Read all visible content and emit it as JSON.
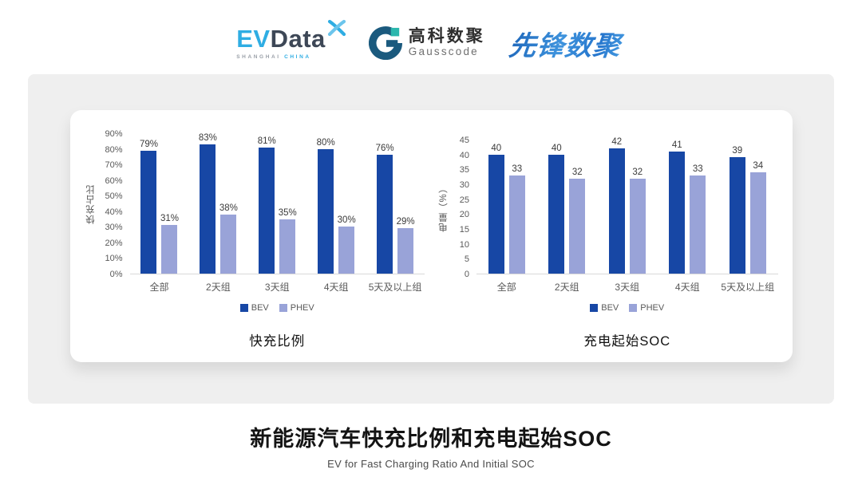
{
  "header": {
    "evdata": {
      "ev": "EV",
      "data": "Data",
      "sub_left": "SHANGHAI",
      "sub_right": "CHINA"
    },
    "gausscode": {
      "cn": "高科数聚",
      "en": "Gausscode"
    },
    "xianfeng": "先锋数聚"
  },
  "colors": {
    "bev": "#1747a5",
    "phev": "#99a3d8",
    "axis_text": "#595959",
    "baseline": "#d9d9d9",
    "evdata_blue": "#2fade3",
    "evdata_dark": "#3d4756",
    "gausscode_dark": "#1b5a7e",
    "gausscode_teal": "#2bb7ad"
  },
  "chart_data": [
    {
      "type": "bar",
      "title": "快充比例",
      "ylabel": "快充占比",
      "categories": [
        "全部",
        "2天组",
        "3天组",
        "4天组",
        "5天及以上组"
      ],
      "series": [
        {
          "name": "BEV",
          "values": [
            79,
            83,
            81,
            80,
            76
          ]
        },
        {
          "name": "PHEV",
          "values": [
            31,
            38,
            35,
            30,
            29
          ]
        }
      ],
      "ylim": [
        0,
        90
      ],
      "yticks": [
        "90%",
        "80%",
        "70%",
        "60%",
        "50%",
        "40%",
        "30%",
        "20%",
        "10%",
        "0%"
      ],
      "value_suffix": "%",
      "legend": [
        "BEV",
        "PHEV"
      ],
      "grid": false,
      "legend_position": "bottom"
    },
    {
      "type": "bar",
      "title": "充电起始SOC",
      "ylabel": "电量（%）",
      "categories": [
        "全部",
        "2天组",
        "3天组",
        "4天组",
        "5天及以上组"
      ],
      "series": [
        {
          "name": "BEV",
          "values": [
            40,
            40,
            42,
            41,
            39
          ]
        },
        {
          "name": "PHEV",
          "values": [
            33,
            32,
            32,
            33,
            34
          ]
        }
      ],
      "ylim": [
        0,
        45
      ],
      "yticks": [
        "45",
        "40",
        "35",
        "30",
        "25",
        "20",
        "15",
        "10",
        "5",
        "0"
      ],
      "value_suffix": "",
      "legend": [
        "BEV",
        "PHEV"
      ],
      "grid": false,
      "legend_position": "bottom"
    }
  ],
  "footer": {
    "title": "新能源汽车快充比例和充电起始SOC",
    "subtitle": "EV for Fast Charging Ratio And Initial SOC"
  }
}
